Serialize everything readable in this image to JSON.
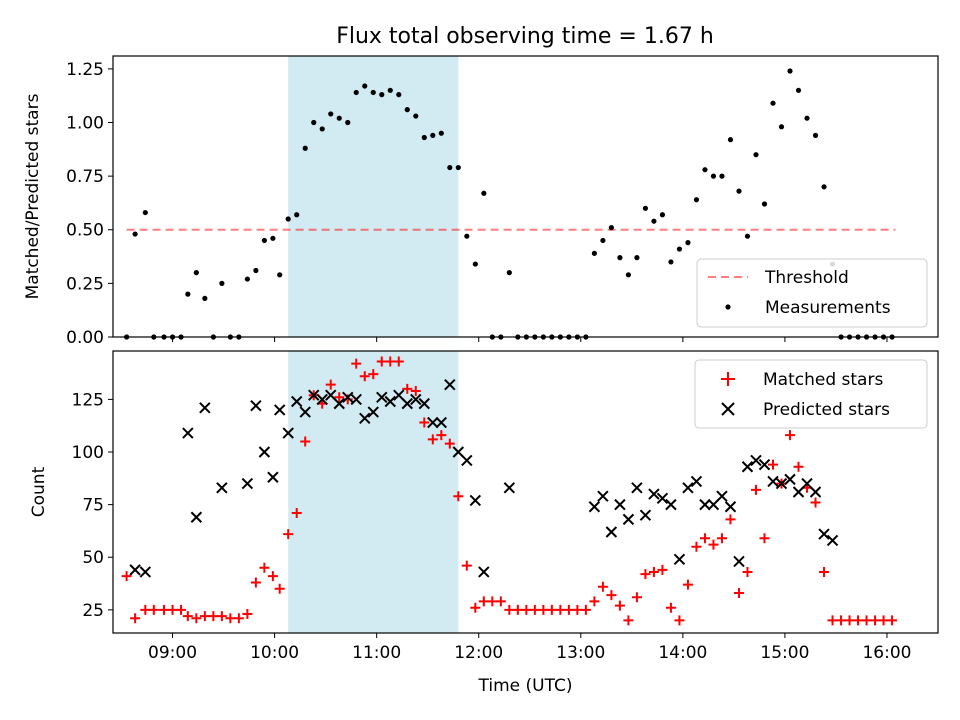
{
  "figure": {
    "title": "Flux total observing time = 1.67 h"
  },
  "colors": {
    "highlight": "#add8e6",
    "threshold": "#ff0000",
    "measurement": "#000000",
    "matched": "#ff0000",
    "predicted": "#000000"
  },
  "chart_data": [
    {
      "type": "scatter",
      "ylabel": "Matched/Predicted stars",
      "ylim": [
        0,
        1.31
      ],
      "yticks": [
        "0.00",
        "0.25",
        "0.50",
        "0.75",
        "1.00",
        "1.25"
      ],
      "xlim": [
        "08:25",
        "16:30"
      ],
      "xticks": [],
      "highlight_span": [
        "10:08",
        "11:48"
      ],
      "legend_position": "lower-right",
      "threshold": {
        "name": "Threshold",
        "value": 0.5,
        "from": "08:33",
        "to": "16:05",
        "style": "dashed"
      },
      "series": [
        {
          "name": "Measurements",
          "points": [
            [
              "08:33",
              0.0
            ],
            [
              "08:38",
              0.48
            ],
            [
              "08:44",
              0.58
            ],
            [
              "08:49",
              0.0
            ],
            [
              "08:55",
              0.0
            ],
            [
              "09:00",
              0.0
            ],
            [
              "09:05",
              0.0
            ],
            [
              "09:09",
              0.2
            ],
            [
              "09:14",
              0.3
            ],
            [
              "09:19",
              0.18
            ],
            [
              "09:24",
              0.0
            ],
            [
              "09:29",
              0.25
            ],
            [
              "09:34",
              0.0
            ],
            [
              "09:39",
              0.0
            ],
            [
              "09:44",
              0.27
            ],
            [
              "09:49",
              0.31
            ],
            [
              "09:54",
              0.45
            ],
            [
              "09:59",
              0.46
            ],
            [
              "10:03",
              0.29
            ],
            [
              "10:08",
              0.55
            ],
            [
              "10:13",
              0.57
            ],
            [
              "10:18",
              0.88
            ],
            [
              "10:23",
              1.0
            ],
            [
              "10:28",
              0.97
            ],
            [
              "10:33",
              1.04
            ],
            [
              "10:38",
              1.02
            ],
            [
              "10:43",
              1.0
            ],
            [
              "10:48",
              1.14
            ],
            [
              "10:53",
              1.17
            ],
            [
              "10:58",
              1.14
            ],
            [
              "11:03",
              1.13
            ],
            [
              "11:08",
              1.15
            ],
            [
              "11:13",
              1.13
            ],
            [
              "11:18",
              1.06
            ],
            [
              "11:23",
              1.03
            ],
            [
              "11:28",
              0.93
            ],
            [
              "11:33",
              0.94
            ],
            [
              "11:38",
              0.95
            ],
            [
              "11:43",
              0.79
            ],
            [
              "11:48",
              0.79
            ],
            [
              "11:53",
              0.47
            ],
            [
              "11:58",
              0.34
            ],
            [
              "12:03",
              0.67
            ],
            [
              "12:08",
              0.0
            ],
            [
              "12:13",
              0.0
            ],
            [
              "12:18",
              0.3
            ],
            [
              "12:23",
              0.0
            ],
            [
              "12:28",
              0.0
            ],
            [
              "12:33",
              0.0
            ],
            [
              "12:38",
              0.0
            ],
            [
              "12:43",
              0.0
            ],
            [
              "12:48",
              0.0
            ],
            [
              "12:53",
              0.0
            ],
            [
              "12:58",
              0.0
            ],
            [
              "13:03",
              0.0
            ],
            [
              "13:08",
              0.39
            ],
            [
              "13:13",
              0.45
            ],
            [
              "13:18",
              0.51
            ],
            [
              "13:23",
              0.37
            ],
            [
              "13:28",
              0.29
            ],
            [
              "13:33",
              0.37
            ],
            [
              "13:38",
              0.6
            ],
            [
              "13:43",
              0.54
            ],
            [
              "13:48",
              0.57
            ],
            [
              "13:53",
              0.35
            ],
            [
              "13:58",
              0.41
            ],
            [
              "14:03",
              0.44
            ],
            [
              "14:08",
              0.64
            ],
            [
              "14:13",
              0.78
            ],
            [
              "14:18",
              0.75
            ],
            [
              "14:23",
              0.75
            ],
            [
              "14:28",
              0.92
            ],
            [
              "14:33",
              0.68
            ],
            [
              "14:38",
              0.47
            ],
            [
              "14:43",
              0.85
            ],
            [
              "14:48",
              0.62
            ],
            [
              "14:53",
              1.09
            ],
            [
              "14:58",
              0.98
            ],
            [
              "15:03",
              1.24
            ],
            [
              "15:08",
              1.15
            ],
            [
              "15:13",
              1.02
            ],
            [
              "15:18",
              0.94
            ],
            [
              "15:23",
              0.7
            ],
            [
              "15:28",
              0.34
            ],
            [
              "15:33",
              0.0
            ],
            [
              "15:38",
              0.0
            ],
            [
              "15:43",
              0.0
            ],
            [
              "15:48",
              0.0
            ],
            [
              "15:53",
              0.0
            ],
            [
              "15:58",
              0.0
            ],
            [
              "16:03",
              0.0
            ]
          ]
        }
      ]
    },
    {
      "type": "scatter",
      "ylabel": "Count",
      "xlabel": "Time (UTC)",
      "ylim": [
        14,
        148
      ],
      "yticks": [
        "25",
        "50",
        "75",
        "100",
        "125"
      ],
      "xlim": [
        "08:25",
        "16:30"
      ],
      "xticks": [
        "09:00",
        "10:00",
        "11:00",
        "12:00",
        "13:00",
        "14:00",
        "15:00",
        "16:00"
      ],
      "highlight_span": [
        "10:08",
        "11:48"
      ],
      "legend_position": "upper-right",
      "series": [
        {
          "name": "Matched stars",
          "marker": "plus",
          "points": [
            [
              "08:33",
              41
            ],
            [
              "08:38",
              21
            ],
            [
              "08:44",
              25
            ],
            [
              "08:49",
              25
            ],
            [
              "08:55",
              25
            ],
            [
              "09:00",
              25
            ],
            [
              "09:05",
              25
            ],
            [
              "09:09",
              22
            ],
            [
              "09:14",
              21
            ],
            [
              "09:19",
              22
            ],
            [
              "09:24",
              22
            ],
            [
              "09:29",
              22
            ],
            [
              "09:34",
              21
            ],
            [
              "09:39",
              21
            ],
            [
              "09:44",
              23
            ],
            [
              "09:49",
              38
            ],
            [
              "09:54",
              45
            ],
            [
              "09:59",
              41
            ],
            [
              "10:03",
              35
            ],
            [
              "10:08",
              61
            ],
            [
              "10:13",
              71
            ],
            [
              "10:18",
              105
            ],
            [
              "10:23",
              127
            ],
            [
              "10:28",
              123
            ],
            [
              "10:33",
              132
            ],
            [
              "10:38",
              126
            ],
            [
              "10:43",
              125
            ],
            [
              "10:48",
              142
            ],
            [
              "10:53",
              136
            ],
            [
              "10:58",
              137
            ],
            [
              "11:03",
              143
            ],
            [
              "11:08",
              143
            ],
            [
              "11:13",
              143
            ],
            [
              "11:18",
              130
            ],
            [
              "11:23",
              129
            ],
            [
              "11:28",
              114
            ],
            [
              "11:33",
              106
            ],
            [
              "11:38",
              108
            ],
            [
              "11:43",
              104
            ],
            [
              "11:48",
              79
            ],
            [
              "11:53",
              46
            ],
            [
              "11:58",
              26
            ],
            [
              "12:03",
              29
            ],
            [
              "12:08",
              29
            ],
            [
              "12:13",
              29
            ],
            [
              "12:18",
              25
            ],
            [
              "12:23",
              25
            ],
            [
              "12:28",
              25
            ],
            [
              "12:33",
              25
            ],
            [
              "12:38",
              25
            ],
            [
              "12:43",
              25
            ],
            [
              "12:48",
              25
            ],
            [
              "12:53",
              25
            ],
            [
              "12:58",
              25
            ],
            [
              "13:03",
              25
            ],
            [
              "13:08",
              29
            ],
            [
              "13:13",
              36
            ],
            [
              "13:18",
              32
            ],
            [
              "13:23",
              27
            ],
            [
              "13:28",
              20
            ],
            [
              "13:33",
              31
            ],
            [
              "13:38",
              42
            ],
            [
              "13:43",
              43
            ],
            [
              "13:48",
              44
            ],
            [
              "13:53",
              26
            ],
            [
              "13:58",
              20
            ],
            [
              "14:03",
              37
            ],
            [
              "14:08",
              55
            ],
            [
              "14:13",
              59
            ],
            [
              "14:18",
              56
            ],
            [
              "14:23",
              59
            ],
            [
              "14:28",
              68
            ],
            [
              "14:33",
              33
            ],
            [
              "14:38",
              43
            ],
            [
              "14:43",
              82
            ],
            [
              "14:48",
              59
            ],
            [
              "14:53",
              94
            ],
            [
              "14:58",
              85
            ],
            [
              "15:03",
              108
            ],
            [
              "15:08",
              93
            ],
            [
              "15:13",
              83
            ],
            [
              "15:18",
              76
            ],
            [
              "15:23",
              43
            ],
            [
              "15:28",
              20
            ],
            [
              "15:33",
              20
            ],
            [
              "15:38",
              20
            ],
            [
              "15:43",
              20
            ],
            [
              "15:48",
              20
            ],
            [
              "15:53",
              20
            ],
            [
              "15:58",
              20
            ],
            [
              "16:03",
              20
            ]
          ]
        },
        {
          "name": "Predicted stars",
          "marker": "x",
          "points": [
            [
              "08:38",
              44
            ],
            [
              "08:44",
              43
            ],
            [
              "09:09",
              109
            ],
            [
              "09:14",
              69
            ],
            [
              "09:19",
              121
            ],
            [
              "09:29",
              83
            ],
            [
              "09:44",
              85
            ],
            [
              "09:49",
              122
            ],
            [
              "09:54",
              100
            ],
            [
              "09:59",
              88
            ],
            [
              "10:03",
              120
            ],
            [
              "10:08",
              109
            ],
            [
              "10:13",
              124
            ],
            [
              "10:18",
              119
            ],
            [
              "10:23",
              127
            ],
            [
              "10:28",
              125
            ],
            [
              "10:33",
              127
            ],
            [
              "10:38",
              123
            ],
            [
              "10:43",
              126
            ],
            [
              "10:48",
              125
            ],
            [
              "10:53",
              116
            ],
            [
              "10:58",
              119
            ],
            [
              "11:03",
              126
            ],
            [
              "11:08",
              124
            ],
            [
              "11:13",
              127
            ],
            [
              "11:18",
              123
            ],
            [
              "11:23",
              125
            ],
            [
              "11:28",
              123
            ],
            [
              "11:33",
              114
            ],
            [
              "11:38",
              114
            ],
            [
              "11:43",
              132
            ],
            [
              "11:48",
              100
            ],
            [
              "11:53",
              96
            ],
            [
              "11:58",
              77
            ],
            [
              "12:03",
              43
            ],
            [
              "12:18",
              83
            ],
            [
              "13:08",
              74
            ],
            [
              "13:13",
              79
            ],
            [
              "13:18",
              62
            ],
            [
              "13:23",
              75
            ],
            [
              "13:28",
              68
            ],
            [
              "13:33",
              83
            ],
            [
              "13:38",
              70
            ],
            [
              "13:43",
              80
            ],
            [
              "13:48",
              78
            ],
            [
              "13:53",
              75
            ],
            [
              "13:58",
              49
            ],
            [
              "14:03",
              83
            ],
            [
              "14:08",
              86
            ],
            [
              "14:13",
              75
            ],
            [
              "14:18",
              75
            ],
            [
              "14:23",
              79
            ],
            [
              "14:28",
              74
            ],
            [
              "14:33",
              48
            ],
            [
              "14:38",
              93
            ],
            [
              "14:43",
              96
            ],
            [
              "14:48",
              94
            ],
            [
              "14:53",
              86
            ],
            [
              "14:58",
              85
            ],
            [
              "15:03",
              87
            ],
            [
              "15:08",
              81
            ],
            [
              "15:13",
              85
            ],
            [
              "15:18",
              81
            ],
            [
              "15:23",
              61
            ],
            [
              "15:28",
              58
            ]
          ]
        }
      ]
    }
  ]
}
